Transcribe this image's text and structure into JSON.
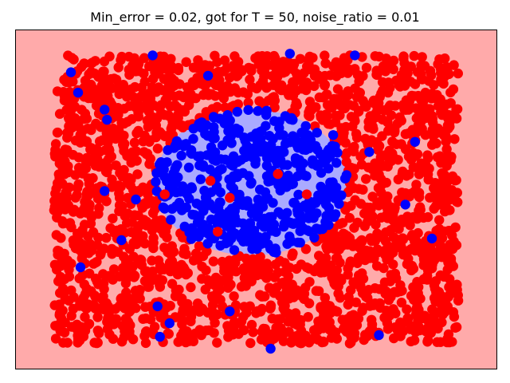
{
  "chart_data": {
    "type": "scatter",
    "title": "Min_error = 0.02, got for T = 50, noise_ratio = 0.01",
    "xlabel": "",
    "ylabel": "",
    "xlim": [
      -1.0,
      1.0
    ],
    "ylim": [
      -1.0,
      1.0
    ],
    "data_extent": {
      "x": [
        -0.84,
        0.84
      ],
      "y": [
        -0.85,
        0.85
      ]
    },
    "ticks_shown": false,
    "grid": false,
    "colors": {
      "background_region_positive": "#ffaaaa",
      "background_region_negative": "#aaaaff",
      "point_positive": "#ff0000",
      "point_negative": "#0000ff",
      "axes_frame": "#000000"
    },
    "decision_region": {
      "shape": "ellipse",
      "center": [
        -0.02,
        0.1
      ],
      "radii": [
        0.4,
        0.43
      ],
      "inside_class": "blue",
      "outside_class": "red"
    },
    "point_count_estimate": 2500,
    "noise_ratio": 0.01,
    "series": [
      {
        "class": "red",
        "color": "#ff0000",
        "region": "outside ellipse",
        "approx_count": 2080
      },
      {
        "class": "blue",
        "color": "#0000ff",
        "region": "inside ellipse",
        "approx_count": 420
      }
    ],
    "noise_points": [
      {
        "class": "blue",
        "x": -0.74,
        "y": 0.63
      },
      {
        "class": "blue",
        "x": -0.63,
        "y": 0.53
      },
      {
        "class": "blue",
        "x": 0.14,
        "y": 0.86
      },
      {
        "class": "blue",
        "x": -0.43,
        "y": 0.85
      },
      {
        "class": "blue",
        "x": -0.62,
        "y": 0.47
      },
      {
        "class": "blue",
        "x": -0.2,
        "y": 0.73
      },
      {
        "class": "blue",
        "x": 0.32,
        "y": 0.38
      },
      {
        "class": "blue",
        "x": 0.47,
        "y": 0.28
      },
      {
        "class": "blue",
        "x": 0.66,
        "y": 0.34
      },
      {
        "class": "blue",
        "x": 0.62,
        "y": -0.03
      },
      {
        "class": "blue",
        "x": -0.63,
        "y": 0.05
      },
      {
        "class": "blue",
        "x": -0.5,
        "y": 0.0
      },
      {
        "class": "blue",
        "x": -0.56,
        "y": -0.24
      },
      {
        "class": "blue",
        "x": 0.73,
        "y": -0.23
      },
      {
        "class": "blue",
        "x": -0.41,
        "y": -0.63
      },
      {
        "class": "blue",
        "x": -0.36,
        "y": -0.73
      },
      {
        "class": "blue",
        "x": -0.4,
        "y": -0.81
      },
      {
        "class": "blue",
        "x": 0.06,
        "y": -0.88
      },
      {
        "class": "blue",
        "x": 0.51,
        "y": -0.8
      },
      {
        "class": "blue",
        "x": -0.11,
        "y": -0.66
      },
      {
        "class": "blue",
        "x": -0.77,
        "y": 0.75
      },
      {
        "class": "blue",
        "x": 0.41,
        "y": 0.85
      },
      {
        "class": "blue",
        "x": -0.73,
        "y": -0.4
      },
      {
        "class": "red",
        "x": 0.09,
        "y": 0.15
      },
      {
        "class": "red",
        "x": -0.16,
        "y": -0.19
      },
      {
        "class": "red",
        "x": 0.21,
        "y": 0.03
      },
      {
        "class": "red",
        "x": -0.19,
        "y": 0.11
      },
      {
        "class": "red",
        "x": -0.11,
        "y": 0.01
      },
      {
        "class": "red",
        "x": -0.02,
        "y": -0.38
      },
      {
        "class": "red",
        "x": -0.38,
        "y": 0.03
      }
    ]
  }
}
